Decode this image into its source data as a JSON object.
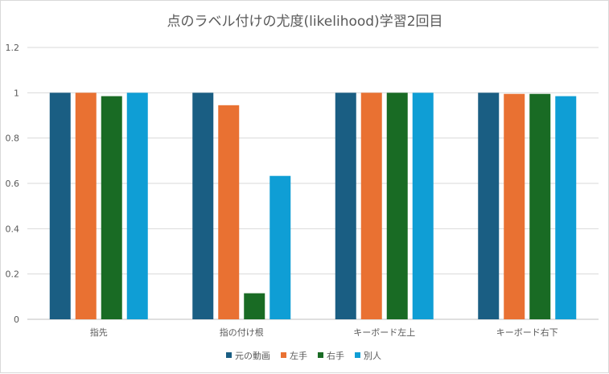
{
  "chart_data": {
    "type": "bar",
    "title": "点のラベル付けの尤度(likelihood)学習2回目",
    "categories": [
      "指先",
      "指の付け根",
      "キーボード左上",
      "キーボード右下"
    ],
    "series": [
      {
        "name": "元の動画",
        "color": "#1a5e83",
        "values": [
          1.0,
          1.0,
          1.0,
          1.0
        ]
      },
      {
        "name": "左手",
        "color": "#e97132",
        "values": [
          1.0,
          0.945,
          1.0,
          0.995
        ]
      },
      {
        "name": "右手",
        "color": "#196b24",
        "values": [
          0.985,
          0.115,
          1.0,
          0.995
        ]
      },
      {
        "name": "別人",
        "color": "#0f9ed5",
        "values": [
          1.0,
          0.633,
          1.0,
          0.985
        ]
      }
    ],
    "ylim": [
      0,
      1.2
    ],
    "yticks": [
      "0",
      "0.2",
      "0.4",
      "0.6",
      "0.8",
      "1",
      "1.2"
    ],
    "grid": true,
    "legend_position": "bottom"
  }
}
